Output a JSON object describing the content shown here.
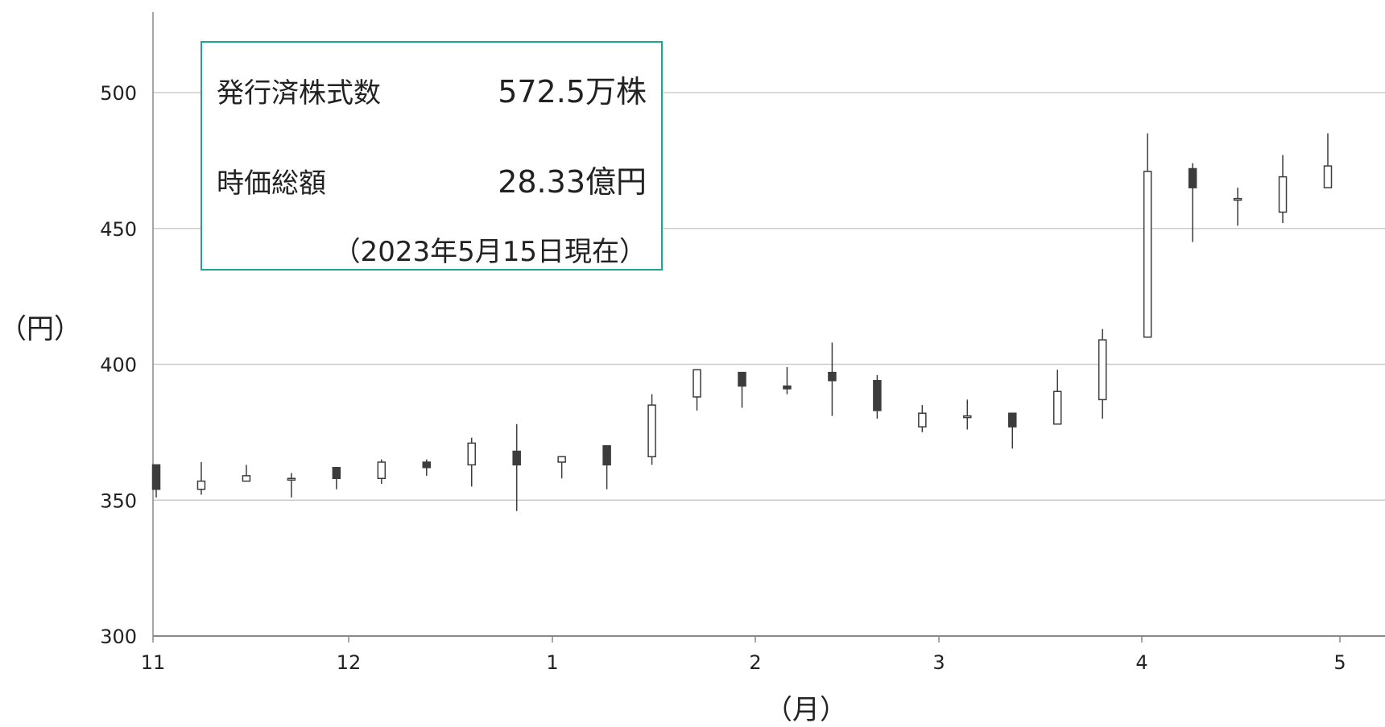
{
  "chart_data": {
    "type": "candlestick",
    "ylabel": "（円）",
    "xlabel": "（月）",
    "ylim": [
      300,
      530
    ],
    "yticks": [
      300,
      350,
      400,
      450,
      500
    ],
    "xticks": [
      "11",
      "12",
      "1",
      "2",
      "3",
      "4",
      "5"
    ],
    "grid": true,
    "candles": [
      {
        "open": 363,
        "close": 354,
        "high": 363,
        "low": 351
      },
      {
        "open": 354,
        "close": 357,
        "high": 364,
        "low": 352
      },
      {
        "open": 357,
        "close": 359,
        "high": 363,
        "low": 357
      },
      {
        "open": 358,
        "close": 358,
        "high": 360,
        "low": 351
      },
      {
        "open": 362,
        "close": 358,
        "high": 362,
        "low": 354
      },
      {
        "open": 358,
        "close": 364,
        "high": 365,
        "low": 356
      },
      {
        "open": 364,
        "close": 362,
        "high": 365,
        "low": 359
      },
      {
        "open": 363,
        "close": 371,
        "high": 373,
        "low": 355
      },
      {
        "open": 368,
        "close": 363,
        "high": 378,
        "low": 346
      },
      {
        "open": 364,
        "close": 366,
        "high": 366,
        "low": 358
      },
      {
        "open": 370,
        "close": 363,
        "high": 370,
        "low": 354
      },
      {
        "open": 366,
        "close": 385,
        "high": 389,
        "low": 363
      },
      {
        "open": 388,
        "close": 398,
        "high": 398,
        "low": 383
      },
      {
        "open": 397,
        "close": 392,
        "high": 397,
        "low": 384
      },
      {
        "open": 392,
        "close": 391,
        "high": 399,
        "low": 389
      },
      {
        "open": 397,
        "close": 394,
        "high": 408,
        "low": 381
      },
      {
        "open": 394,
        "close": 383,
        "high": 396,
        "low": 380
      },
      {
        "open": 377,
        "close": 382,
        "high": 385,
        "low": 375
      },
      {
        "open": 381,
        "close": 381,
        "high": 387,
        "low": 376
      },
      {
        "open": 382,
        "close": 377,
        "high": 382,
        "low": 369
      },
      {
        "open": 378,
        "close": 390,
        "high": 398,
        "low": 378
      },
      {
        "open": 387,
        "close": 409,
        "high": 413,
        "low": 380
      },
      {
        "open": 410,
        "close": 471,
        "high": 485,
        "low": 410
      },
      {
        "open": 472,
        "close": 465,
        "high": 474,
        "low": 445
      },
      {
        "open": 461,
        "close": 461,
        "high": 465,
        "low": 451
      },
      {
        "open": 456,
        "close": 469,
        "high": 477,
        "low": 452
      },
      {
        "open": 465,
        "close": 473,
        "high": 485,
        "low": 465
      }
    ]
  },
  "info": {
    "shares_label": "発行済株式数",
    "shares_value": "572.5万株",
    "market_cap_label": "時価総額",
    "market_cap_value": "28.33億円",
    "as_of": "（2023年5月15日現在）"
  },
  "colors": {
    "bearish_fill": "#3c3c3c",
    "bullish_fill": "#ffffff",
    "candle_stroke": "#3c3c3c",
    "grid": "#cccccc",
    "axis": "#888888",
    "box_border": "#1fa393"
  }
}
